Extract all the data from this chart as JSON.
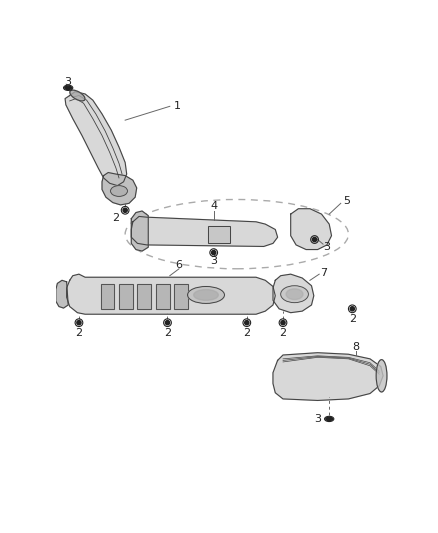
{
  "bg_color": "#ffffff",
  "fig_width": 4.38,
  "fig_height": 5.33,
  "dpi": 100,
  "line_color": "#444444",
  "fill_light": "#d8d8d8",
  "fill_mid": "#c0c0c0",
  "fill_dark": "#a8a8a8"
}
